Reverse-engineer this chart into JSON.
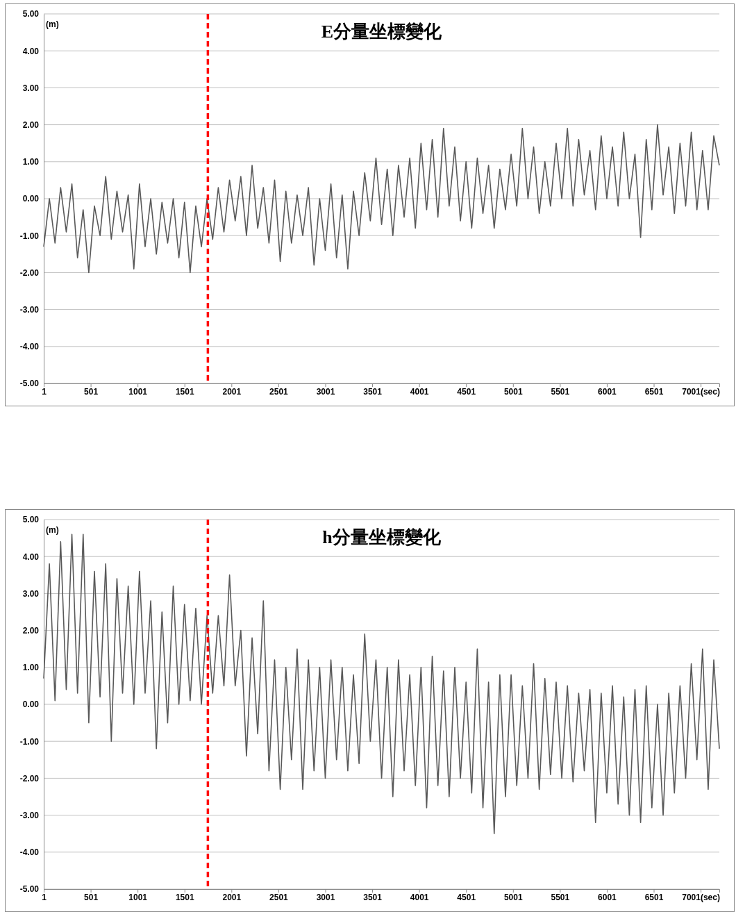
{
  "chart_data": [
    {
      "type": "line",
      "title": "E分量坐標變化",
      "ylabel": "(m)",
      "grid": "y",
      "line_style": "solid",
      "marker": "none",
      "xlim": [
        1,
        7200
      ],
      "ylim": [
        -5,
        5
      ],
      "xticks": [
        1,
        501,
        1001,
        1501,
        2001,
        2501,
        3001,
        3501,
        4001,
        4501,
        5001,
        5501,
        6001,
        6501,
        {
          "value": 7001,
          "label": "7001(sec)"
        }
      ],
      "yticks": [
        {
          "value": -5,
          "label": "-5.00"
        },
        {
          "value": -4,
          "label": "-4.00"
        },
        {
          "value": -3,
          "label": "-3.00"
        },
        {
          "value": -2,
          "label": "-2.00"
        },
        {
          "value": -1,
          "label": "-1.00"
        },
        {
          "value": 0,
          "label": "0.00"
        },
        {
          "value": 1,
          "label": "1.00"
        },
        {
          "value": 2,
          "label": "2.00"
        },
        {
          "value": 3,
          "label": "3.00"
        },
        {
          "value": 4,
          "label": "4.00"
        },
        {
          "value": 5,
          "label": "5.00"
        }
      ],
      "ref_lines": [
        {
          "axis": "x",
          "value": 1750,
          "color": "#ff0000",
          "line_style": "dashed"
        }
      ],
      "series": [
        {
          "color": "#595959",
          "x": [
            1,
            61,
            121,
            181,
            241,
            301,
            361,
            421,
            481,
            541,
            601,
            661,
            721,
            781,
            841,
            901,
            961,
            1021,
            1081,
            1141,
            1201,
            1261,
            1321,
            1381,
            1441,
            1501,
            1561,
            1621,
            1681,
            1741,
            1801,
            1861,
            1921,
            1981,
            2041,
            2101,
            2161,
            2221,
            2281,
            2341,
            2401,
            2461,
            2521,
            2581,
            2641,
            2701,
            2761,
            2821,
            2881,
            2941,
            3001,
            3061,
            3121,
            3181,
            3241,
            3301,
            3361,
            3421,
            3481,
            3541,
            3601,
            3661,
            3721,
            3781,
            3841,
            3901,
            3961,
            4021,
            4081,
            4141,
            4201,
            4261,
            4321,
            4381,
            4441,
            4501,
            4561,
            4621,
            4681,
            4741,
            4801,
            4861,
            4921,
            4981,
            5041,
            5101,
            5161,
            5221,
            5281,
            5341,
            5401,
            5461,
            5521,
            5581,
            5641,
            5701,
            5761,
            5821,
            5881,
            5941,
            6001,
            6061,
            6121,
            6181,
            6241,
            6301,
            6361,
            6421,
            6481,
            6541,
            6601,
            6661,
            6721,
            6781,
            6841,
            6901,
            6961,
            7021,
            7081,
            7141,
            7200
          ],
          "values": [
            -1.3,
            0.0,
            -1.2,
            0.3,
            -0.9,
            0.4,
            -1.6,
            -0.3,
            -2.0,
            -0.2,
            -1.0,
            0.6,
            -1.1,
            0.2,
            -0.9,
            0.1,
            -1.9,
            0.4,
            -1.3,
            0.0,
            -1.5,
            -0.1,
            -1.2,
            0.0,
            -1.6,
            -0.1,
            -2.0,
            -0.2,
            -1.3,
            0.0,
            -1.1,
            0.3,
            -0.9,
            0.5,
            -0.6,
            0.6,
            -1.0,
            0.9,
            -0.8,
            0.3,
            -1.2,
            0.5,
            -1.7,
            0.2,
            -1.2,
            0.1,
            -1.0,
            0.3,
            -1.8,
            0.0,
            -1.4,
            0.4,
            -1.6,
            0.1,
            -1.9,
            0.2,
            -1.0,
            0.7,
            -0.6,
            1.1,
            -0.7,
            0.8,
            -1.0,
            0.9,
            -0.5,
            1.1,
            -0.8,
            1.5,
            -0.3,
            1.6,
            -0.5,
            1.9,
            -0.2,
            1.4,
            -0.6,
            1.0,
            -0.8,
            1.1,
            -0.4,
            0.9,
            -0.8,
            0.8,
            -0.3,
            1.2,
            -0.2,
            1.9,
            0.0,
            1.4,
            -0.4,
            1.0,
            -0.2,
            1.5,
            0.0,
            1.9,
            -0.2,
            1.6,
            0.1,
            1.3,
            -0.3,
            1.7,
            0.0,
            1.4,
            -0.2,
            1.8,
            0.0,
            1.2,
            -1.05,
            1.6,
            -0.3,
            2.0,
            0.1,
            1.4,
            -0.4,
            1.5,
            -0.2,
            1.8,
            -0.3,
            1.3,
            -0.3,
            1.7,
            0.9
          ]
        }
      ]
    },
    {
      "type": "line",
      "title": "h分量坐標變化",
      "ylabel": "(m)",
      "grid": "y",
      "line_style": "solid",
      "marker": "none",
      "xlim": [
        1,
        7200
      ],
      "ylim": [
        -5,
        5
      ],
      "xticks": [
        1,
        501,
        1001,
        1501,
        2001,
        2501,
        3001,
        3501,
        4001,
        4501,
        5001,
        5501,
        6001,
        6501,
        {
          "value": 7001,
          "label": "7001(sec)"
        }
      ],
      "yticks": [
        {
          "value": -5,
          "label": "-5.00"
        },
        {
          "value": -4,
          "label": "-4.00"
        },
        {
          "value": -3,
          "label": "-3.00"
        },
        {
          "value": -2,
          "label": "-2.00"
        },
        {
          "value": -1,
          "label": "-1.00"
        },
        {
          "value": 0,
          "label": "0.00"
        },
        {
          "value": 1,
          "label": "1.00"
        },
        {
          "value": 2,
          "label": "2.00"
        },
        {
          "value": 3,
          "label": "3.00"
        },
        {
          "value": 4,
          "label": "4.00"
        },
        {
          "value": 5,
          "label": "5.00"
        }
      ],
      "ref_lines": [
        {
          "axis": "x",
          "value": 1750,
          "color": "#ff0000",
          "line_style": "dashed"
        }
      ],
      "series": [
        {
          "color": "#595959",
          "x": [
            1,
            61,
            121,
            181,
            241,
            301,
            361,
            421,
            481,
            541,
            601,
            661,
            721,
            781,
            841,
            901,
            961,
            1021,
            1081,
            1141,
            1201,
            1261,
            1321,
            1381,
            1441,
            1501,
            1561,
            1621,
            1681,
            1741,
            1801,
            1861,
            1921,
            1981,
            2041,
            2101,
            2161,
            2221,
            2281,
            2341,
            2401,
            2461,
            2521,
            2581,
            2641,
            2701,
            2761,
            2821,
            2881,
            2941,
            3001,
            3061,
            3121,
            3181,
            3241,
            3301,
            3361,
            3421,
            3481,
            3541,
            3601,
            3661,
            3721,
            3781,
            3841,
            3901,
            3961,
            4021,
            4081,
            4141,
            4201,
            4261,
            4321,
            4381,
            4441,
            4501,
            4561,
            4621,
            4681,
            4741,
            4801,
            4861,
            4921,
            4981,
            5041,
            5101,
            5161,
            5221,
            5281,
            5341,
            5401,
            5461,
            5521,
            5581,
            5641,
            5701,
            5761,
            5821,
            5881,
            5941,
            6001,
            6061,
            6121,
            6181,
            6241,
            6301,
            6361,
            6421,
            6481,
            6541,
            6601,
            6661,
            6721,
            6781,
            6841,
            6901,
            6961,
            7021,
            7081,
            7141,
            7200
          ],
          "values": [
            0.7,
            3.8,
            0.1,
            4.4,
            0.4,
            4.6,
            0.3,
            4.6,
            -0.5,
            3.6,
            0.2,
            3.8,
            -1.0,
            3.4,
            0.3,
            3.2,
            0.0,
            3.6,
            0.3,
            2.8,
            -1.2,
            2.5,
            -0.5,
            3.2,
            0.0,
            2.7,
            0.1,
            2.6,
            0.0,
            2.4,
            0.3,
            2.4,
            0.5,
            3.5,
            0.5,
            2.0,
            -1.4,
            1.8,
            -0.8,
            2.8,
            -1.8,
            1.2,
            -2.3,
            1.0,
            -1.5,
            1.5,
            -2.3,
            1.2,
            -1.8,
            1.0,
            -2.0,
            1.2,
            -1.5,
            1.0,
            -1.8,
            0.8,
            -1.6,
            1.9,
            -1.0,
            1.2,
            -2.0,
            1.0,
            -2.5,
            1.2,
            -1.8,
            0.8,
            -2.2,
            1.0,
            -2.8,
            1.3,
            -2.2,
            0.9,
            -2.5,
            1.0,
            -2.0,
            0.6,
            -2.4,
            1.5,
            -2.8,
            0.6,
            -3.5,
            0.8,
            -2.5,
            0.8,
            -2.2,
            0.5,
            -2.0,
            1.1,
            -2.3,
            0.7,
            -1.9,
            0.6,
            -2.0,
            0.5,
            -2.1,
            0.3,
            -1.8,
            0.4,
            -3.2,
            0.3,
            -2.4,
            0.5,
            -2.7,
            0.2,
            -3.0,
            0.4,
            -3.2,
            0.5,
            -2.8,
            0.0,
            -3.0,
            0.3,
            -2.4,
            0.5,
            -2.0,
            1.1,
            -1.5,
            1.5,
            -2.3,
            1.2,
            -1.2
          ]
        }
      ]
    }
  ]
}
